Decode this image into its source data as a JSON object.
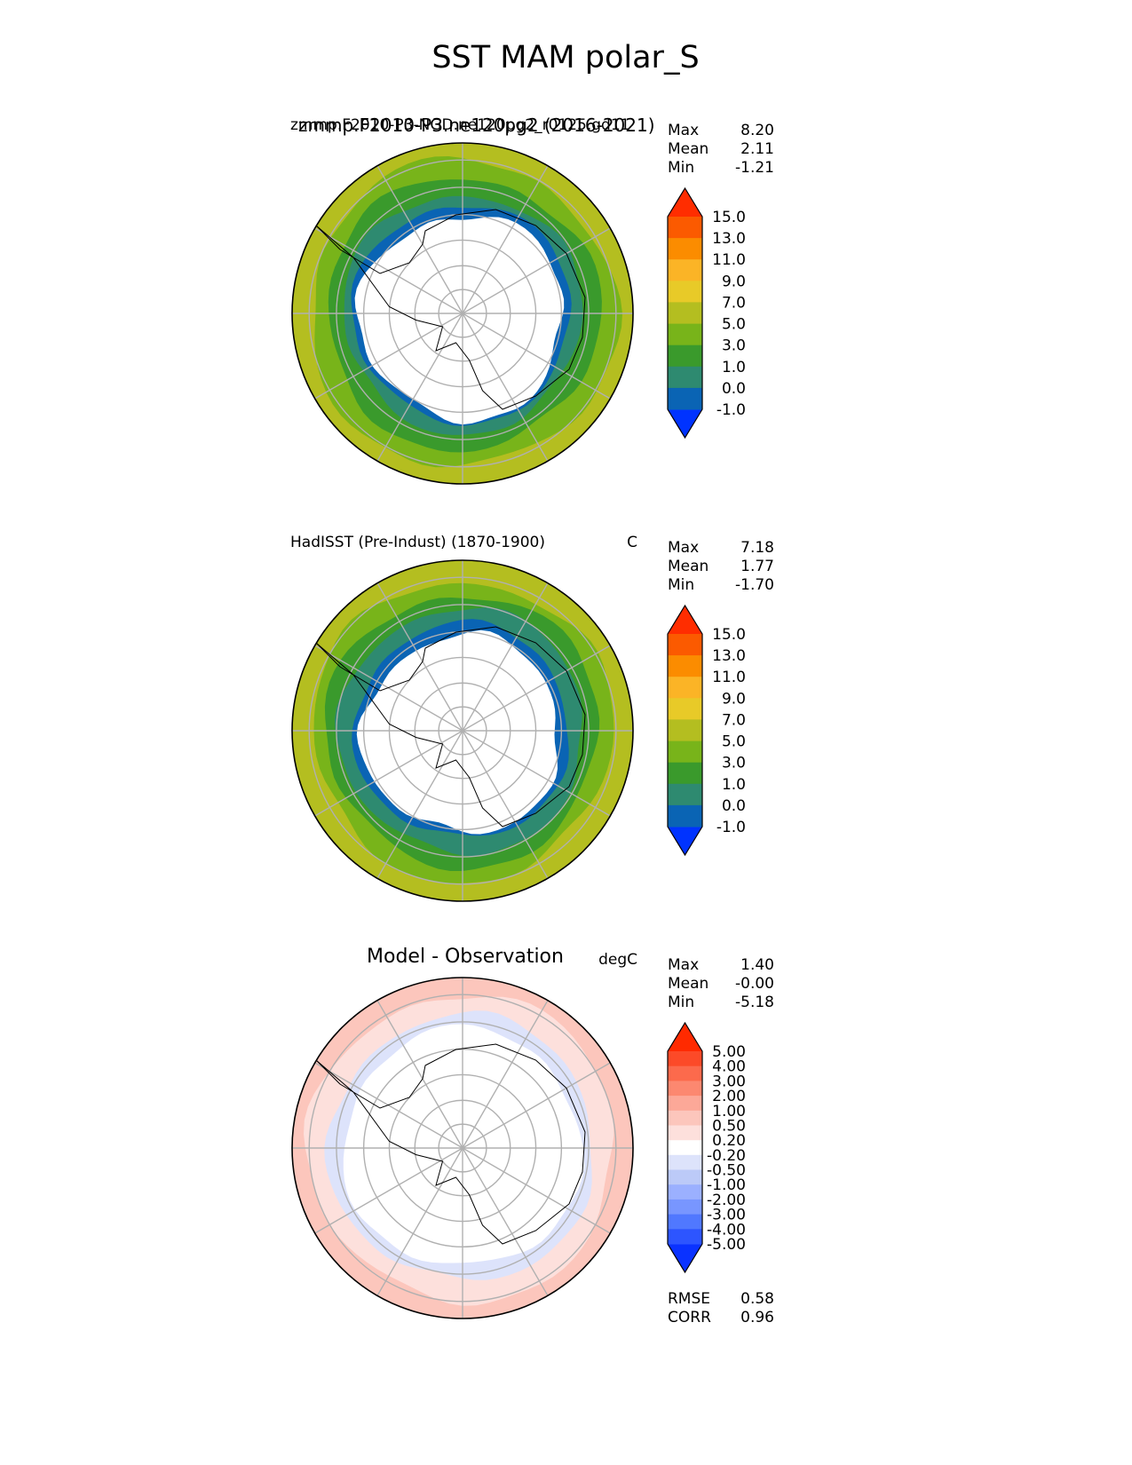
{
  "figure": {
    "title": "SST MAM polar_S"
  },
  "chart_data": [
    {
      "type": "heatmap",
      "projection": "south-polar-stereographic",
      "panel": "test",
      "left_title": "zmmp.F2010-P3-NGD.ne120pg2_r0125.gd11",
      "left_title_overlay": "zmmp.F2010-P3.ne120pg2 (2016-2021)",
      "center_title": "",
      "units": "",
      "stats": {
        "max_label": "Max",
        "mean_label": "Mean",
        "min_label": "Min",
        "max": "8.20",
        "mean": "2.11",
        "min": "-1.21"
      },
      "colorbar": {
        "levels": [
          "-1.0",
          "0.0",
          "1.0",
          "3.0",
          "5.0",
          "7.0",
          "9.0",
          "11.0",
          "13.0",
          "15.0"
        ],
        "colors": [
          "#0033ff",
          "#0a64b4",
          "#2e8a70",
          "#3a9a2c",
          "#78b41a",
          "#b4be20",
          "#e8ca28",
          "#fbb426",
          "#fb8c00",
          "#fb5a00",
          "#ff2d00"
        ],
        "extend": "both"
      },
      "bands": [
        {
          "color": "#b4be20",
          "rim": 1.0
        },
        {
          "color": "#78b41a",
          "rim": 0.9
        },
        {
          "color": "#3a9a2c",
          "rim": 0.8
        },
        {
          "color": "#2e8a70",
          "rim": 0.7
        },
        {
          "color": "#0a64b4",
          "rim": 0.64
        }
      ],
      "ice_edge_fraction": 0.6
    },
    {
      "type": "heatmap",
      "projection": "south-polar-stereographic",
      "panel": "reference",
      "left_title": "HadISST (Pre-Indust) (1870-1900)",
      "center_title": "",
      "units": "C",
      "stats": {
        "max_label": "Max",
        "mean_label": "Mean",
        "min_label": "Min",
        "max": "7.18",
        "mean": "1.77",
        "min": "-1.70"
      },
      "colorbar": {
        "levels": [
          "-1.0",
          "0.0",
          "1.0",
          "3.0",
          "5.0",
          "7.0",
          "9.0",
          "11.0",
          "13.0",
          "15.0"
        ],
        "colors": [
          "#0033ff",
          "#0a64b4",
          "#2e8a70",
          "#3a9a2c",
          "#78b41a",
          "#b4be20",
          "#e8ca28",
          "#fbb426",
          "#fb8c00",
          "#fb5a00",
          "#ff2d00"
        ],
        "extend": "both"
      },
      "bands": [
        {
          "color": "#b4be20",
          "rim": 1.0
        },
        {
          "color": "#78b41a",
          "rim": 0.88
        },
        {
          "color": "#3a9a2c",
          "rim": 0.8
        },
        {
          "color": "#2e8a70",
          "rim": 0.72
        },
        {
          "color": "#0a64b4",
          "rim": 0.63
        }
      ],
      "ice_edge_fraction": 0.58
    },
    {
      "type": "heatmap",
      "projection": "south-polar-stereographic",
      "panel": "difference",
      "left_title": "",
      "center_title": "Model - Observation",
      "units": "degC",
      "stats": {
        "max_label": "Max",
        "mean_label": "Mean",
        "min_label": "Min",
        "max": "1.40",
        "mean": "-0.00",
        "min": "-5.18"
      },
      "metrics": {
        "rmse_label": "RMSE",
        "rmse": "0.58",
        "corr_label": "CORR",
        "corr": "0.96"
      },
      "colorbar": {
        "levels": [
          "-5.00",
          "-4.00",
          "-3.00",
          "-2.00",
          "-1.00",
          "-0.50",
          "-0.20",
          "0.20",
          "0.50",
          "1.00",
          "2.00",
          "3.00",
          "4.00",
          "5.00"
        ],
        "colors": [
          "#0a32ff",
          "#2d55ff",
          "#5078ff",
          "#7896ff",
          "#9bb0ff",
          "#bccaf8",
          "#dde3fb",
          "#ffffff",
          "#fde0dc",
          "#fcc6bc",
          "#fca898",
          "#fc8870",
          "#fc6a4c",
          "#fc4a28",
          "#ff2a00"
        ],
        "extend": "both"
      },
      "bands": [
        {
          "color": "#fcc6bc",
          "rim": 1.0
        },
        {
          "color": "#fde0dc",
          "rim": 0.9
        },
        {
          "color": "#dde3fb",
          "rim": 0.78
        },
        {
          "color": "#ffffff",
          "rim": 0.7
        }
      ],
      "ice_edge_fraction": 0.6
    }
  ]
}
